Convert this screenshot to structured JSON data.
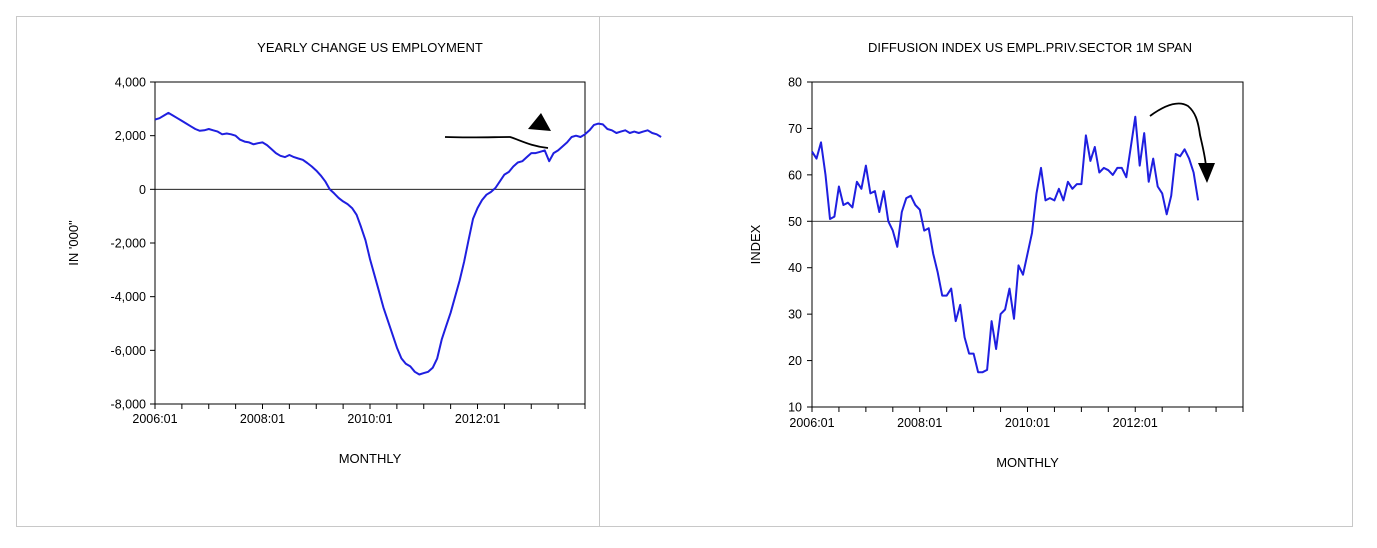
{
  "chart_data": [
    {
      "type": "line",
      "title": "YEARLY CHANGE US EMPLOYMENT",
      "xlabel": "MONTHLY",
      "ylabel": "IN '000\"",
      "x_start": "2006:01",
      "x_end": "2013:12",
      "ylim": [
        -8000,
        4000
      ],
      "yticks": [
        "4,000",
        "2,000",
        "0",
        "-2,000",
        "-4,000",
        "-6,000",
        "-8,000"
      ],
      "ytick_values": [
        4000,
        2000,
        0,
        -2000,
        -4000,
        -6000,
        -8000
      ],
      "xticks": [
        "2006:01",
        "2008:01",
        "2010:01",
        "2012:01"
      ],
      "reference_line": 0,
      "grid": false,
      "series": [
        {
          "color": "#1f1fe0",
          "values": [
            2600,
            2650,
            2750,
            2850,
            2750,
            2650,
            2550,
            2450,
            2350,
            2250,
            2180,
            2200,
            2250,
            2200,
            2150,
            2050,
            2080,
            2050,
            2000,
            1850,
            1780,
            1750,
            1680,
            1720,
            1750,
            1650,
            1500,
            1350,
            1250,
            1200,
            1280,
            1200,
            1150,
            1100,
            980,
            850,
            700,
            520,
            300,
            0,
            -150,
            -320,
            -450,
            -550,
            -700,
            -950,
            -1400,
            -1900,
            -2600,
            -3200,
            -3800,
            -4400,
            -4900,
            -5400,
            -5900,
            -6300,
            -6500,
            -6600,
            -6800,
            -6900,
            -6850,
            -6800,
            -6650,
            -6300,
            -5600,
            -5100,
            -4600,
            -4000,
            -3400,
            -2700,
            -1900,
            -1100,
            -700,
            -400,
            -200,
            -100,
            50,
            300,
            550,
            650,
            850,
            1000,
            1050,
            1200,
            1350,
            1350,
            1400,
            1450,
            1050,
            1350,
            1450,
            1600,
            1750,
            1950,
            2000,
            1950,
            2050,
            2200,
            2400,
            2450,
            2420,
            2250,
            2200,
            2100,
            2150,
            2200,
            2100,
            2150,
            2100,
            2150,
            2200,
            2100,
            2050,
            1950
          ]
        }
      ],
      "annotation": "arrow-down-right"
    },
    {
      "type": "line",
      "title": "DIFFUSION INDEX  US EMPL.PRIV.SECTOR 1M SPAN",
      "xlabel": "MONTHLY",
      "ylabel": "INDEX",
      "x_start": "2006:01",
      "x_end": "2013:12",
      "ylim": [
        10,
        80
      ],
      "yticks": [
        "80",
        "70",
        "60",
        "50",
        "40",
        "30",
        "20",
        "10"
      ],
      "ytick_values": [
        80,
        70,
        60,
        50,
        40,
        30,
        20,
        10
      ],
      "xticks": [
        "2006:01",
        "2008:01",
        "2010:01",
        "2012:01"
      ],
      "reference_line": 50,
      "grid": false,
      "series": [
        {
          "color": "#1f1fe0",
          "values": [
            65,
            63.5,
            67,
            60,
            50.5,
            51,
            57.5,
            53.5,
            54,
            53,
            58.5,
            57,
            62,
            56,
            56.5,
            52,
            56.5,
            50,
            48,
            44.5,
            52,
            55,
            55.5,
            53.5,
            52.5,
            48,
            48.5,
            43,
            39,
            34,
            34,
            35.5,
            28.5,
            32,
            25,
            21.5,
            21.5,
            17.5,
            17.5,
            18,
            28.5,
            22.5,
            30,
            31,
            35.5,
            29,
            40.5,
            38.5,
            43,
            47.5,
            56,
            61.5,
            54.5,
            55,
            54.5,
            57,
            54.5,
            58.5,
            57,
            58,
            58,
            68.5,
            63,
            66,
            60.5,
            61.5,
            61,
            60,
            61.5,
            61.5,
            59.5,
            66,
            72.5,
            62,
            69,
            58.5,
            63.5,
            57.5,
            56,
            51.5,
            55.5,
            64.5,
            64,
            65.5,
            63.5,
            60.5,
            54.5
          ]
        }
      ],
      "annotation": "arrow-curving-down"
    }
  ]
}
